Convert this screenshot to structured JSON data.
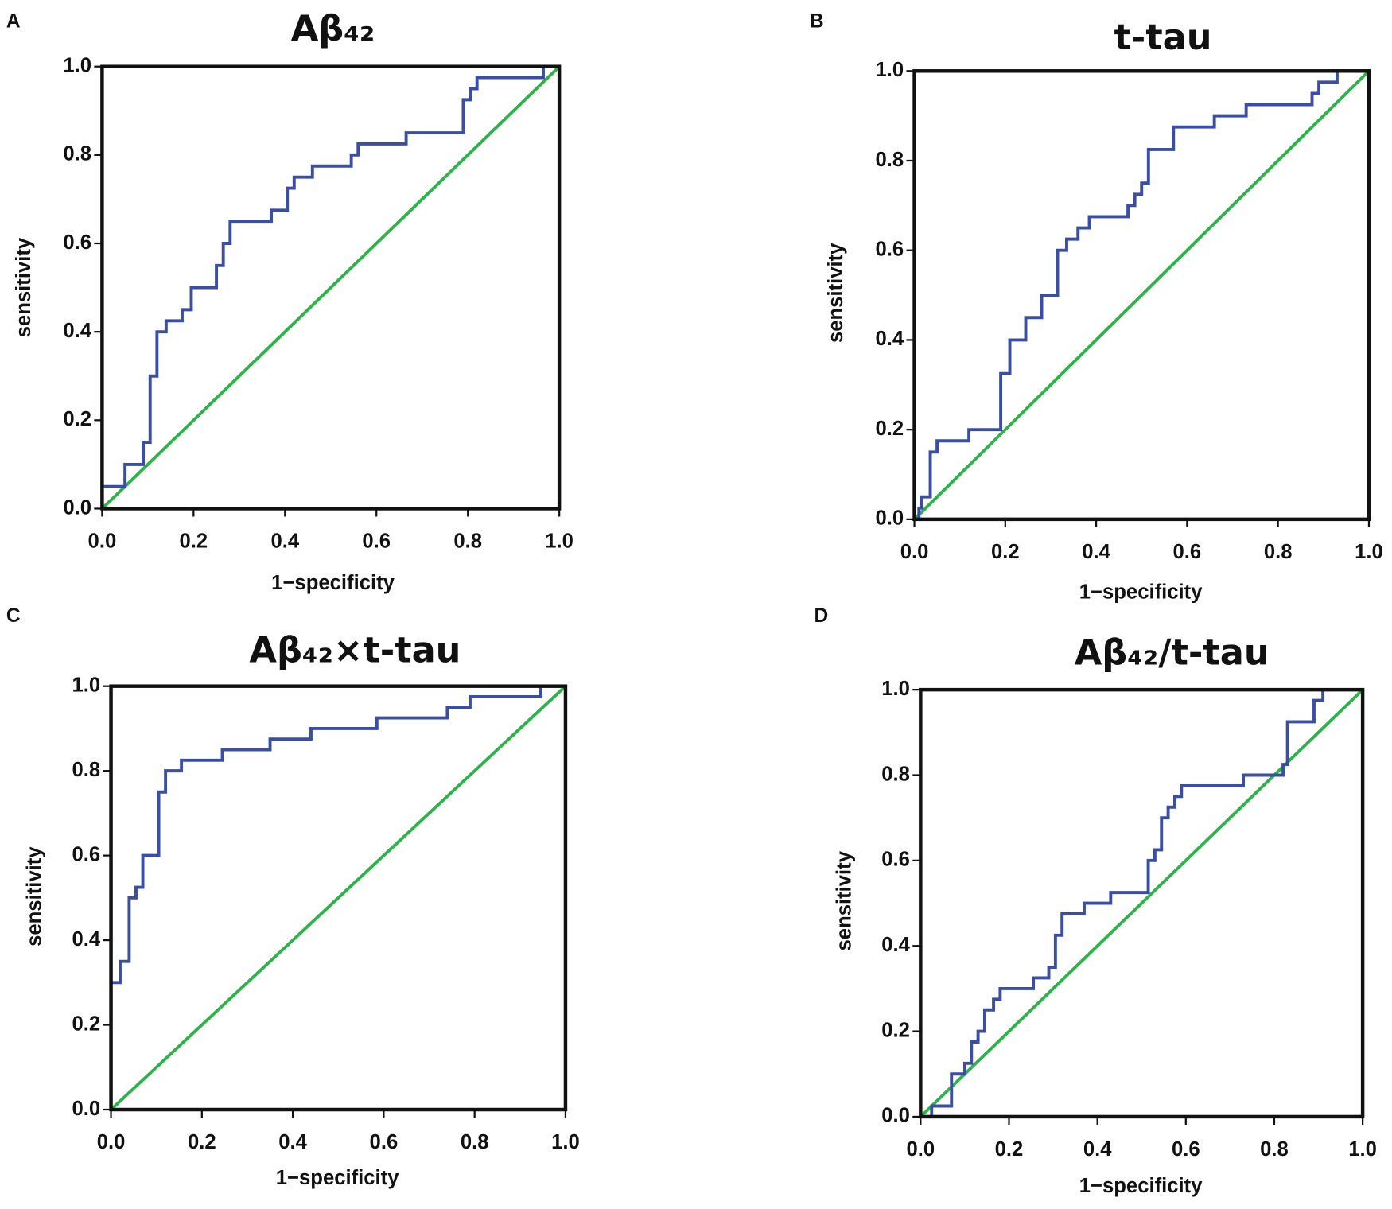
{
  "chart_data": [
    {
      "type": "line",
      "panel_label": "A",
      "title": "Aβ₄₂",
      "xlabel": "1−specificity",
      "ylabel": "sensitivity",
      "xlim": [
        0,
        1
      ],
      "ylim": [
        0,
        1
      ],
      "xticks": [
        {
          "value": 0,
          "label": "0.0"
        },
        0.2,
        0.4,
        0.6,
        0.8,
        {
          "value": 1,
          "label": "1.0"
        }
      ],
      "yticks": [
        {
          "value": 0,
          "label": "0.0"
        },
        0.2,
        0.4,
        0.6,
        0.8,
        {
          "value": 1,
          "label": "1.0"
        }
      ],
      "series": [
        {
          "color": "#3a4fa3",
          "x": [
            0,
            0,
            0.05,
            0.05,
            0.09,
            0.09,
            0.105,
            0.105,
            0.12,
            0.12,
            0.14,
            0.14,
            0.175,
            0.175,
            0.195,
            0.195,
            0.25,
            0.25,
            0.265,
            0.265,
            0.28,
            0.28,
            0.37,
            0.37,
            0.405,
            0.405,
            0.42,
            0.42,
            0.46,
            0.46,
            0.545,
            0.545,
            0.56,
            0.56,
            0.665,
            0.665,
            0.79,
            0.79,
            0.805,
            0.805,
            0.82,
            0.82,
            0.965,
            0.965,
            1
          ],
          "values": [
            0,
            0.05,
            0.05,
            0.1,
            0.1,
            0.15,
            0.15,
            0.3,
            0.3,
            0.4,
            0.4,
            0.425,
            0.425,
            0.45,
            0.45,
            0.5,
            0.5,
            0.55,
            0.55,
            0.6,
            0.6,
            0.65,
            0.65,
            0.675,
            0.675,
            0.725,
            0.725,
            0.75,
            0.75,
            0.775,
            0.775,
            0.8,
            0.8,
            0.825,
            0.825,
            0.85,
            0.85,
            0.925,
            0.925,
            0.95,
            0.95,
            0.975,
            0.975,
            1,
            1
          ]
        },
        {
          "color": "#2db34a",
          "x": [
            0,
            1
          ],
          "values": [
            0,
            1
          ]
        }
      ]
    },
    {
      "type": "line",
      "panel_label": "B",
      "title": "t-tau",
      "xlabel": "1−specificity",
      "ylabel": "sensitivity",
      "xlim": [
        0,
        1
      ],
      "ylim": [
        0,
        1
      ],
      "xticks": [
        {
          "value": 0,
          "label": "0.0"
        },
        0.2,
        0.4,
        0.6,
        0.8,
        {
          "value": 1,
          "label": "1.0"
        }
      ],
      "yticks": [
        {
          "value": 0,
          "label": "0.0"
        },
        0.2,
        0.4,
        0.6,
        0.8,
        {
          "value": 1,
          "label": "1.0"
        }
      ],
      "series": [
        {
          "color": "#3a4fa3",
          "x": [
            0,
            0.01,
            0.01,
            0.015,
            0.015,
            0.035,
            0.035,
            0.05,
            0.05,
            0.12,
            0.12,
            0.19,
            0.19,
            0.21,
            0.21,
            0.245,
            0.245,
            0.28,
            0.28,
            0.315,
            0.315,
            0.335,
            0.335,
            0.36,
            0.36,
            0.385,
            0.385,
            0.47,
            0.47,
            0.485,
            0.485,
            0.5,
            0.5,
            0.515,
            0.515,
            0.57,
            0.57,
            0.66,
            0.66,
            0.73,
            0.73,
            0.875,
            0.875,
            0.89,
            0.89,
            0.93,
            0.93,
            1
          ],
          "values": [
            0,
            0,
            0.025,
            0.025,
            0.05,
            0.05,
            0.15,
            0.15,
            0.175,
            0.175,
            0.2,
            0.2,
            0.325,
            0.325,
            0.4,
            0.4,
            0.45,
            0.45,
            0.5,
            0.5,
            0.6,
            0.6,
            0.625,
            0.625,
            0.65,
            0.65,
            0.675,
            0.675,
            0.7,
            0.7,
            0.725,
            0.725,
            0.75,
            0.75,
            0.825,
            0.825,
            0.875,
            0.875,
            0.9,
            0.9,
            0.925,
            0.925,
            0.95,
            0.95,
            0.975,
            0.975,
            1,
            1
          ]
        },
        {
          "color": "#2db34a",
          "x": [
            0,
            1
          ],
          "values": [
            0,
            1
          ]
        }
      ]
    },
    {
      "type": "line",
      "panel_label": "C",
      "title": "Aβ₄₂×t-tau",
      "xlabel": "1−specificity",
      "ylabel": "sensitivity",
      "xlim": [
        0,
        1
      ],
      "ylim": [
        0,
        1
      ],
      "xticks": [
        {
          "value": 0,
          "label": "0.0"
        },
        0.2,
        0.4,
        0.6,
        0.8,
        {
          "value": 1,
          "label": "1.0"
        }
      ],
      "yticks": [
        {
          "value": 0,
          "label": "0.0"
        },
        0.2,
        0.4,
        0.6,
        0.8,
        {
          "value": 1,
          "label": "1.0"
        }
      ],
      "series": [
        {
          "color": "#3a4fa3",
          "x": [
            0,
            0,
            0.02,
            0.02,
            0.04,
            0.04,
            0.055,
            0.055,
            0.07,
            0.07,
            0.105,
            0.105,
            0.12,
            0.12,
            0.155,
            0.155,
            0.245,
            0.245,
            0.35,
            0.35,
            0.44,
            0.44,
            0.585,
            0.585,
            0.74,
            0.74,
            0.79,
            0.79,
            0.945,
            0.945,
            1
          ],
          "values": [
            0,
            0.3,
            0.3,
            0.35,
            0.35,
            0.5,
            0.5,
            0.525,
            0.525,
            0.6,
            0.6,
            0.75,
            0.75,
            0.8,
            0.8,
            0.825,
            0.825,
            0.85,
            0.85,
            0.875,
            0.875,
            0.9,
            0.9,
            0.925,
            0.925,
            0.95,
            0.95,
            0.975,
            0.975,
            1,
            1
          ]
        },
        {
          "color": "#2db34a",
          "x": [
            0,
            1
          ],
          "values": [
            0,
            1
          ]
        }
      ]
    },
    {
      "type": "line",
      "panel_label": "D",
      "title": "Aβ₄₂/t-tau",
      "xlabel": "1−specificity",
      "ylabel": "sensitivity",
      "xlim": [
        0,
        1
      ],
      "ylim": [
        0,
        1
      ],
      "xticks": [
        {
          "value": 0,
          "label": "0.0"
        },
        0.2,
        0.4,
        0.6,
        0.8,
        {
          "value": 1,
          "label": "1.0"
        }
      ],
      "yticks": [
        {
          "value": 0,
          "label": "0.0"
        },
        0.2,
        0.4,
        0.6,
        0.8,
        {
          "value": 1,
          "label": "1.0"
        }
      ],
      "series": [
        {
          "color": "#3a4fa3",
          "x": [
            0,
            0.025,
            0.025,
            0.07,
            0.07,
            0.1,
            0.1,
            0.115,
            0.115,
            0.13,
            0.13,
            0.145,
            0.145,
            0.165,
            0.165,
            0.18,
            0.18,
            0.255,
            0.255,
            0.29,
            0.29,
            0.305,
            0.305,
            0.32,
            0.32,
            0.37,
            0.37,
            0.43,
            0.43,
            0.515,
            0.515,
            0.53,
            0.53,
            0.545,
            0.545,
            0.56,
            0.56,
            0.575,
            0.575,
            0.59,
            0.59,
            0.73,
            0.73,
            0.82,
            0.82,
            0.83,
            0.83,
            0.89,
            0.89,
            0.91,
            0.91,
            1
          ],
          "values": [
            0,
            0,
            0.025,
            0.025,
            0.1,
            0.1,
            0.125,
            0.125,
            0.175,
            0.175,
            0.2,
            0.2,
            0.25,
            0.25,
            0.275,
            0.275,
            0.3,
            0.3,
            0.325,
            0.325,
            0.35,
            0.35,
            0.425,
            0.425,
            0.475,
            0.475,
            0.5,
            0.5,
            0.525,
            0.525,
            0.6,
            0.6,
            0.625,
            0.625,
            0.7,
            0.7,
            0.725,
            0.725,
            0.75,
            0.75,
            0.775,
            0.775,
            0.8,
            0.8,
            0.825,
            0.825,
            0.925,
            0.925,
            0.975,
            0.975,
            1,
            1
          ]
        },
        {
          "color": "#2db34a",
          "x": [
            0,
            1
          ],
          "values": [
            0,
            1
          ]
        }
      ]
    }
  ]
}
